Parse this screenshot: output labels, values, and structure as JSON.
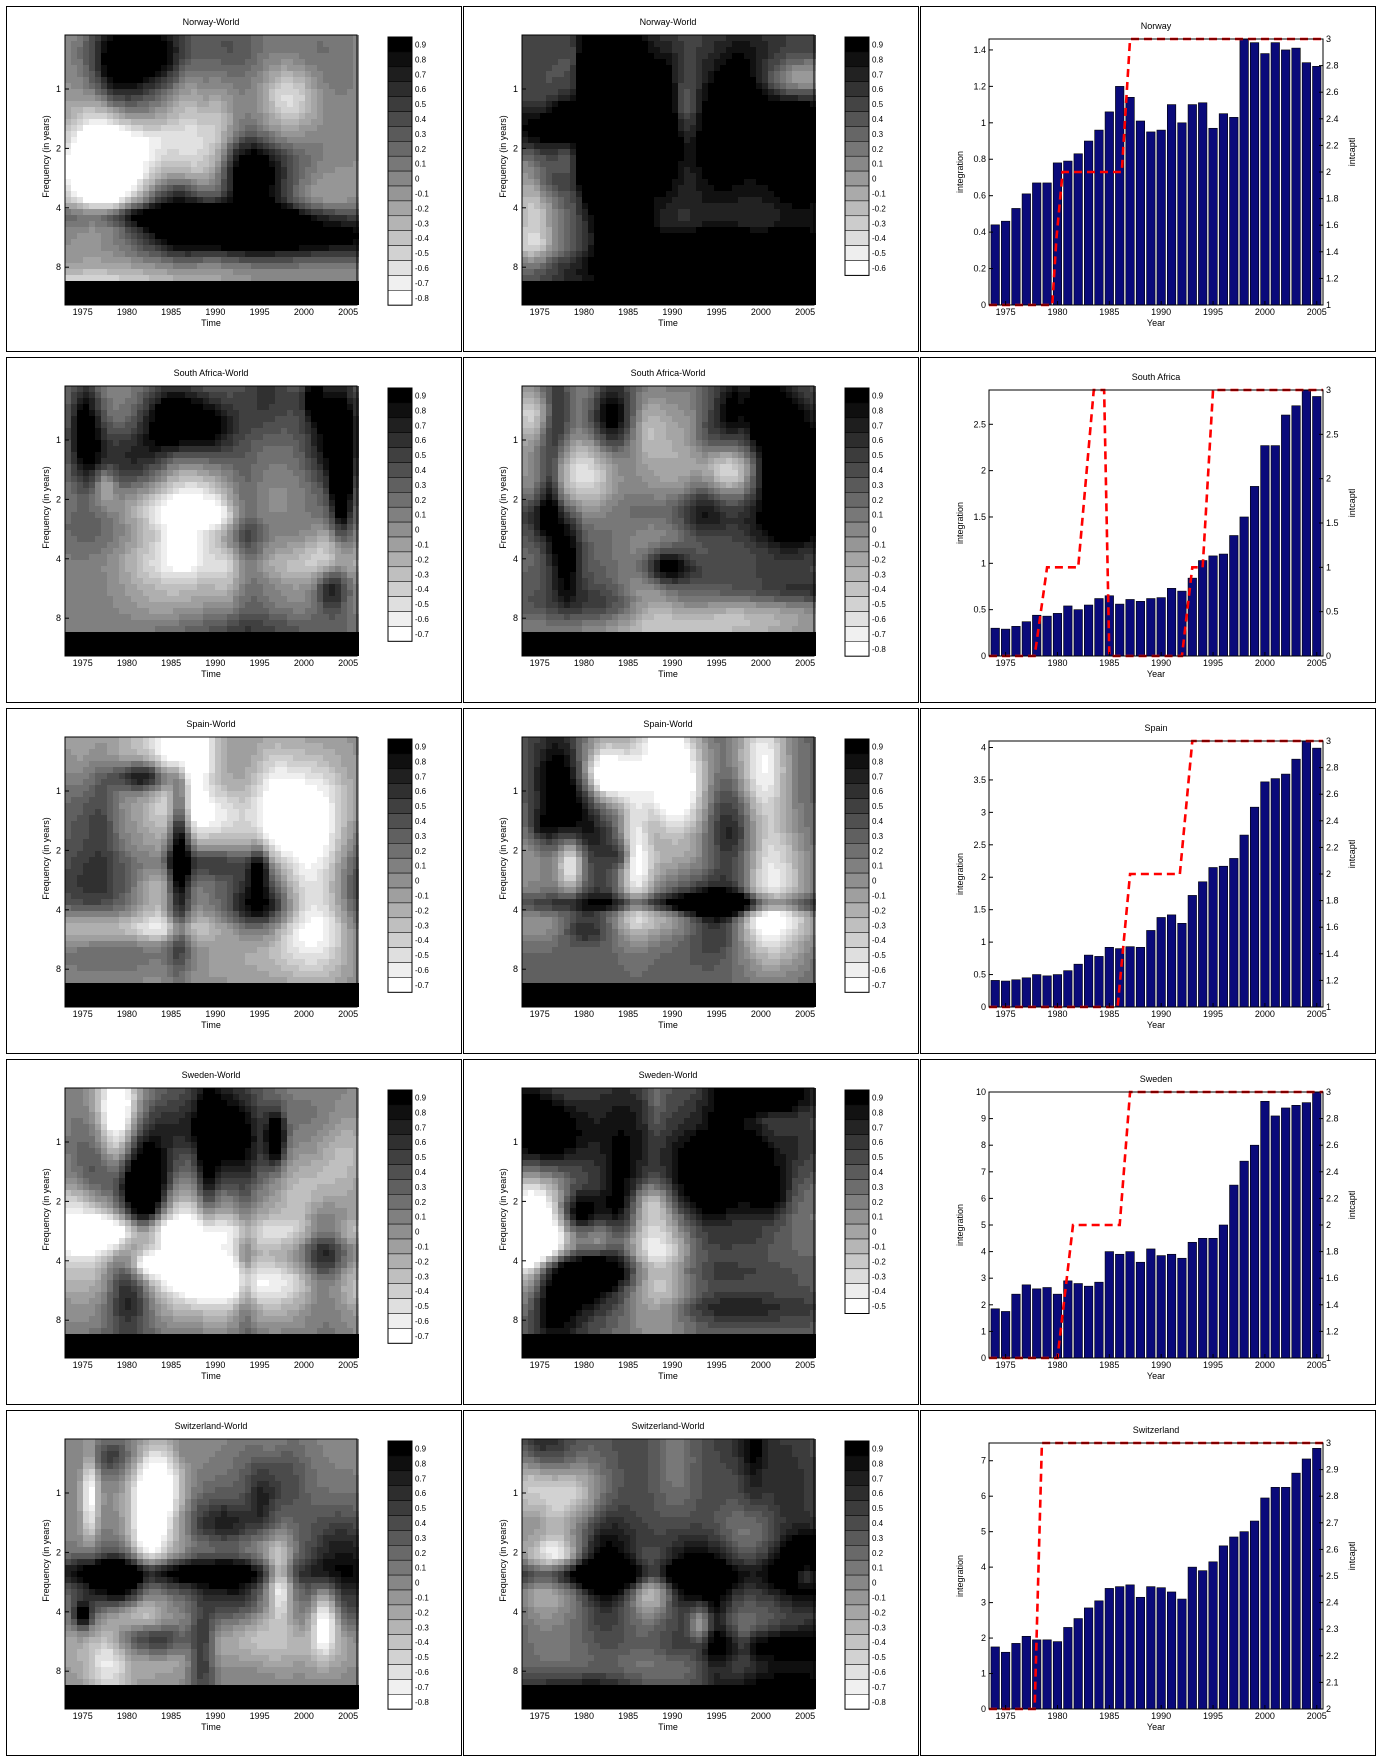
{
  "colors": {
    "bar_fill": "#0a0a7a",
    "dashed_line": "#ff0000",
    "contour_black": "#000000",
    "contour_white": "#ffffff"
  },
  "chart_data": [
    {
      "type": "heatmap",
      "title": "Norway-World",
      "xlabel": "Time",
      "ylabel": "Frequency (in years)",
      "xticks": [
        "1975",
        "1980",
        "1985",
        "1990",
        "1995",
        "2000",
        "2005"
      ],
      "yticks": [
        "1",
        "2",
        "4",
        "8"
      ],
      "colorbar_ticks": [
        "0.9",
        "0.8",
        "0.7",
        "0.6",
        "0.5",
        "0.4",
        "0.3",
        "0.2",
        "0.1",
        "0",
        "-0.1",
        "-0.2",
        "-0.3",
        "-0.4",
        "-0.5",
        "-0.6",
        "-0.7",
        "-0.8"
      ],
      "colorbar_range": [
        -0.8,
        0.9
      ],
      "seed": 11,
      "bias": -0.05
    },
    {
      "type": "heatmap",
      "title": "Norway-World",
      "xlabel": "Time",
      "ylabel": "Frequency (in years)",
      "xticks": [
        "1975",
        "1980",
        "1985",
        "1990",
        "1995",
        "2000",
        "2005"
      ],
      "yticks": [
        "1",
        "2",
        "4",
        "8"
      ],
      "colorbar_ticks": [
        "0.9",
        "0.8",
        "0.7",
        "0.6",
        "0.5",
        "0.4",
        "0.3",
        "0.2",
        "0.1",
        "0",
        "-0.1",
        "-0.2",
        "-0.3",
        "-0.4",
        "-0.5",
        "-0.6"
      ],
      "colorbar_range": [
        -0.6,
        0.9
      ],
      "seed": 12,
      "bias": 0.45
    },
    {
      "type": "bar",
      "title": "Norway",
      "xlabel": "Year",
      "ylabel": "integration",
      "y2label": "intcaptl",
      "x": [
        1974,
        1975,
        1976,
        1977,
        1978,
        1979,
        1980,
        1981,
        1982,
        1983,
        1984,
        1985,
        1986,
        1987,
        1988,
        1989,
        1990,
        1991,
        1992,
        1993,
        1994,
        1995,
        1996,
        1997,
        1998,
        1999,
        2000,
        2001,
        2002,
        2003,
        2004,
        2005
      ],
      "values": [
        0.44,
        0.46,
        0.53,
        0.61,
        0.67,
        0.67,
        0.78,
        0.79,
        0.83,
        0.9,
        0.96,
        1.06,
        1.2,
        1.14,
        1.01,
        0.95,
        0.96,
        1.1,
        1.0,
        1.1,
        1.11,
        0.97,
        1.05,
        1.03,
        1.46,
        1.44,
        1.38,
        1.44,
        1.4,
        1.41,
        1.33,
        1.31
      ],
      "line_x": [
        1973,
        1979.5,
        1979.9,
        1980.5,
        1986.2,
        1987,
        2006
      ],
      "line_y": [
        1,
        1,
        1.5,
        2,
        2,
        3,
        3
      ],
      "xticks": [
        "1975",
        "1980",
        "1985",
        "1990",
        "1995",
        "2000",
        "2005"
      ],
      "yticks": [
        "0",
        "0.2",
        "0.4",
        "0.6",
        "0.8",
        "1",
        "1.2",
        "1.4"
      ],
      "y2ticks": [
        "1",
        "1.2",
        "1.4",
        "1.6",
        "1.8",
        "2",
        "2.2",
        "2.4",
        "2.6",
        "2.8",
        "3"
      ],
      "ylim": [
        0,
        1.46
      ],
      "y2lim": [
        1,
        3
      ]
    },
    {
      "type": "heatmap",
      "title": "South Africa-World",
      "xlabel": "Time",
      "ylabel": "Frequency (in years)",
      "xticks": [
        "1975",
        "1980",
        "1985",
        "1990",
        "1995",
        "2000",
        "2005"
      ],
      "yticks": [
        "1",
        "2",
        "4",
        "8"
      ],
      "colorbar_ticks": [
        "0.9",
        "0.8",
        "0.7",
        "0.6",
        "0.5",
        "0.4",
        "0.3",
        "0.2",
        "0.1",
        "0",
        "-0.1",
        "-0.2",
        "-0.3",
        "-0.4",
        "-0.5",
        "-0.6",
        "-0.7"
      ],
      "colorbar_range": [
        -0.7,
        0.9
      ],
      "seed": 21,
      "bias": 0.05
    },
    {
      "type": "heatmap",
      "title": "South Africa-World",
      "xlabel": "Time",
      "ylabel": "Frequency (in years)",
      "xticks": [
        "1975",
        "1980",
        "1985",
        "1990",
        "1995",
        "2000",
        "2005"
      ],
      "yticks": [
        "1",
        "2",
        "4",
        "8"
      ],
      "colorbar_ticks": [
        "0.9",
        "0.8",
        "0.7",
        "0.6",
        "0.5",
        "0.4",
        "0.3",
        "0.2",
        "0.1",
        "0",
        "-0.1",
        "-0.2",
        "-0.3",
        "-0.4",
        "-0.5",
        "-0.6",
        "-0.7",
        "-0.8"
      ],
      "colorbar_range": [
        -0.8,
        0.9
      ],
      "seed": 22,
      "bias": 0.25
    },
    {
      "type": "bar",
      "title": "South Africa",
      "xlabel": "Year",
      "ylabel": "integration",
      "y2label": "intcaptl",
      "x": [
        1974,
        1975,
        1976,
        1977,
        1978,
        1979,
        1980,
        1981,
        1982,
        1983,
        1984,
        1985,
        1986,
        1987,
        1988,
        1989,
        1990,
        1991,
        1992,
        1993,
        1994,
        1995,
        1996,
        1997,
        1998,
        1999,
        2000,
        2001,
        2002,
        2003,
        2004,
        2005
      ],
      "values": [
        0.3,
        0.29,
        0.32,
        0.37,
        0.44,
        0.43,
        0.46,
        0.54,
        0.5,
        0.55,
        0.62,
        0.65,
        0.56,
        0.61,
        0.59,
        0.62,
        0.63,
        0.73,
        0.7,
        0.84,
        1.03,
        1.08,
        1.1,
        1.3,
        1.5,
        1.83,
        2.27,
        2.27,
        2.6,
        2.7,
        2.87,
        2.8
      ],
      "line_x": [
        1973,
        1977.8,
        1979,
        1981,
        1982,
        1983.5,
        1984.5,
        1985,
        1992,
        1993,
        1994,
        1995,
        2006
      ],
      "line_y": [
        0,
        0,
        1,
        1,
        1,
        3,
        3,
        0,
        0,
        1,
        1,
        3,
        3
      ],
      "xticks": [
        "1975",
        "1980",
        "1985",
        "1990",
        "1995",
        "2000",
        "2005"
      ],
      "yticks": [
        "0",
        "0.5",
        "1",
        "1.5",
        "2",
        "2.5"
      ],
      "y2ticks": [
        "0",
        "0.5",
        "1",
        "1.5",
        "2",
        "2.5",
        "3"
      ],
      "ylim": [
        0,
        2.87
      ],
      "y2lim": [
        0,
        3
      ]
    },
    {
      "type": "heatmap",
      "title": "Spain-World",
      "xlabel": "Time",
      "ylabel": "Frequency (in years)",
      "xticks": [
        "1975",
        "1980",
        "1985",
        "1990",
        "1995",
        "2000",
        "2005"
      ],
      "yticks": [
        "1",
        "2",
        "4",
        "8"
      ],
      "colorbar_ticks": [
        "0.9",
        "0.8",
        "0.7",
        "0.6",
        "0.5",
        "0.4",
        "0.3",
        "0.2",
        "0.1",
        "0",
        "-0.1",
        "-0.2",
        "-0.3",
        "-0.4",
        "-0.5",
        "-0.6",
        "-0.7"
      ],
      "colorbar_range": [
        -0.7,
        0.9
      ],
      "seed": 31,
      "bias": 0.0
    },
    {
      "type": "heatmap",
      "title": "Spain-World",
      "xlabel": "Time",
      "ylabel": "Frequency (in years)",
      "xticks": [
        "1975",
        "1980",
        "1985",
        "1990",
        "1995",
        "2000",
        "2005"
      ],
      "yticks": [
        "1",
        "2",
        "4",
        "8"
      ],
      "colorbar_ticks": [
        "0.9",
        "0.8",
        "0.7",
        "0.6",
        "0.5",
        "0.4",
        "0.3",
        "0.2",
        "0.1",
        "0",
        "-0.1",
        "-0.2",
        "-0.3",
        "-0.4",
        "-0.5",
        "-0.6",
        "-0.7"
      ],
      "colorbar_range": [
        -0.7,
        0.9
      ],
      "seed": 32,
      "bias": 0.3
    },
    {
      "type": "bar",
      "title": "Spain",
      "xlabel": "Year",
      "ylabel": "integration",
      "y2label": "intcaptl",
      "x": [
        1974,
        1975,
        1976,
        1977,
        1978,
        1979,
        1980,
        1981,
        1982,
        1983,
        1984,
        1985,
        1986,
        1987,
        1988,
        1989,
        1990,
        1991,
        1992,
        1993,
        1994,
        1995,
        1996,
        1997,
        1998,
        1999,
        2000,
        2001,
        2002,
        2003,
        2004,
        2005
      ],
      "values": [
        0.41,
        0.4,
        0.42,
        0.45,
        0.5,
        0.48,
        0.5,
        0.56,
        0.66,
        0.8,
        0.78,
        0.92,
        0.9,
        0.93,
        0.92,
        1.18,
        1.38,
        1.42,
        1.29,
        1.72,
        1.93,
        2.15,
        2.17,
        2.29,
        2.65,
        3.08,
        3.47,
        3.52,
        3.59,
        3.82,
        4.1,
        3.99
      ],
      "line_x": [
        1973,
        1985.8,
        1987,
        1991.8,
        1993,
        2006
      ],
      "line_y": [
        1,
        1,
        2,
        2,
        3,
        3
      ],
      "xticks": [
        "1975",
        "1980",
        "1985",
        "1990",
        "1995",
        "2000",
        "2005"
      ],
      "yticks": [
        "0",
        "0.5",
        "1",
        "1.5",
        "2",
        "2.5",
        "3",
        "3.5",
        "4"
      ],
      "y2ticks": [
        "1",
        "1.2",
        "1.4",
        "1.6",
        "1.8",
        "2",
        "2.2",
        "2.4",
        "2.6",
        "2.8",
        "3"
      ],
      "ylim": [
        0,
        4.1
      ],
      "y2lim": [
        1,
        3
      ]
    },
    {
      "type": "heatmap",
      "title": "Sweden-World",
      "xlabel": "Time",
      "ylabel": "Frequency (in years)",
      "xticks": [
        "1975",
        "1980",
        "1985",
        "1990",
        "1995",
        "2000",
        "2005"
      ],
      "yticks": [
        "1",
        "2",
        "4",
        "8"
      ],
      "colorbar_ticks": [
        "0.9",
        "0.8",
        "0.7",
        "0.6",
        "0.5",
        "0.4",
        "0.3",
        "0.2",
        "0.1",
        "0",
        "-0.1",
        "-0.2",
        "-0.3",
        "-0.4",
        "-0.5",
        "-0.6",
        "-0.7"
      ],
      "colorbar_range": [
        -0.7,
        0.9
      ],
      "seed": 41,
      "bias": 0.05
    },
    {
      "type": "heatmap",
      "title": "Sweden-World",
      "xlabel": "Time",
      "ylabel": "Frequency (in years)",
      "xticks": [
        "1975",
        "1980",
        "1985",
        "1990",
        "1995",
        "2000",
        "2005"
      ],
      "yticks": [
        "1",
        "2",
        "4",
        "8"
      ],
      "colorbar_ticks": [
        "0.9",
        "0.8",
        "0.7",
        "0.6",
        "0.5",
        "0.4",
        "0.3",
        "0.2",
        "0.1",
        "0",
        "-0.1",
        "-0.2",
        "-0.3",
        "-0.4",
        "-0.5"
      ],
      "colorbar_range": [
        -0.5,
        0.9
      ],
      "seed": 42,
      "bias": 0.4
    },
    {
      "type": "bar",
      "title": "Sweden",
      "xlabel": "Year",
      "ylabel": "integration",
      "y2label": "intcaptl",
      "x": [
        1974,
        1975,
        1976,
        1977,
        1978,
        1979,
        1980,
        1981,
        1982,
        1983,
        1984,
        1985,
        1986,
        1987,
        1988,
        1989,
        1990,
        1991,
        1992,
        1993,
        1994,
        1995,
        1996,
        1997,
        1998,
        1999,
        2000,
        2001,
        2002,
        2003,
        2004,
        2005
      ],
      "values": [
        1.85,
        1.75,
        2.4,
        2.75,
        2.6,
        2.65,
        2.4,
        2.9,
        2.8,
        2.7,
        2.85,
        4.0,
        3.9,
        4.0,
        3.6,
        4.1,
        3.85,
        3.9,
        3.75,
        4.35,
        4.5,
        4.5,
        5.0,
        6.5,
        7.4,
        8.0,
        9.65,
        9.1,
        9.4,
        9.5,
        9.6,
        10.0
      ],
      "line_x": [
        1973,
        1980,
        1981.5,
        1986,
        1987,
        2006
      ],
      "line_y": [
        1,
        1,
        2,
        2,
        3,
        3
      ],
      "xticks": [
        "1975",
        "1980",
        "1985",
        "1990",
        "1995",
        "2000",
        "2005"
      ],
      "yticks": [
        "0",
        "1",
        "2",
        "3",
        "4",
        "5",
        "6",
        "7",
        "8",
        "9",
        "10"
      ],
      "y2ticks": [
        "1",
        "1.2",
        "1.4",
        "1.6",
        "1.8",
        "2",
        "2.2",
        "2.4",
        "2.6",
        "2.8",
        "3"
      ],
      "ylim": [
        0,
        10
      ],
      "y2lim": [
        1,
        3
      ]
    },
    {
      "type": "heatmap",
      "title": "Switzerland-World",
      "xlabel": "Time",
      "ylabel": "Frequency (in years)",
      "xticks": [
        "1975",
        "1980",
        "1985",
        "1990",
        "1995",
        "2000",
        "2005"
      ],
      "yticks": [
        "1",
        "2",
        "4",
        "8"
      ],
      "colorbar_ticks": [
        "0.9",
        "0.8",
        "0.7",
        "0.6",
        "0.5",
        "0.4",
        "0.3",
        "0.2",
        "0.1",
        "0",
        "-0.1",
        "-0.2",
        "-0.3",
        "-0.4",
        "-0.5",
        "-0.6",
        "-0.7",
        "-0.8"
      ],
      "colorbar_range": [
        -0.8,
        0.9
      ],
      "seed": 51,
      "bias": 0.0
    },
    {
      "type": "heatmap",
      "title": "Switzerland-World",
      "xlabel": "Time",
      "ylabel": "Frequency (in years)",
      "xticks": [
        "1975",
        "1980",
        "1985",
        "1990",
        "1995",
        "2000",
        "2005"
      ],
      "yticks": [
        "1",
        "2",
        "4",
        "8"
      ],
      "colorbar_ticks": [
        "0.9",
        "0.8",
        "0.7",
        "0.6",
        "0.5",
        "0.4",
        "0.3",
        "0.2",
        "0.1",
        "0",
        "-0.1",
        "-0.2",
        "-0.3",
        "-0.4",
        "-0.5",
        "-0.6",
        "-0.7",
        "-0.8"
      ],
      "colorbar_range": [
        -0.8,
        0.9
      ],
      "seed": 52,
      "bias": 0.4
    },
    {
      "type": "bar",
      "title": "Switzerland",
      "xlabel": "Year",
      "ylabel": "integration",
      "y2label": "intcaptl",
      "x": [
        1974,
        1975,
        1976,
        1977,
        1978,
        1979,
        1980,
        1981,
        1982,
        1983,
        1984,
        1985,
        1986,
        1987,
        1988,
        1989,
        1990,
        1991,
        1992,
        1993,
        1994,
        1995,
        1996,
        1997,
        1998,
        1999,
        2000,
        2001,
        2002,
        2003,
        2004,
        2005
      ],
      "values": [
        1.75,
        1.6,
        1.85,
        2.05,
        1.95,
        1.95,
        1.9,
        2.3,
        2.55,
        2.85,
        3.05,
        3.4,
        3.45,
        3.5,
        3.15,
        3.45,
        3.42,
        3.3,
        3.1,
        4.0,
        3.9,
        4.15,
        4.6,
        4.85,
        5.0,
        5.3,
        5.95,
        6.25,
        6.25,
        6.65,
        7.05,
        7.35
      ],
      "line_x": [
        1973,
        1977.8,
        1978.5,
        2006
      ],
      "line_y": [
        2,
        2,
        3,
        3
      ],
      "xticks": [
        "1975",
        "1980",
        "1985",
        "1990",
        "1995",
        "2000",
        "2005"
      ],
      "yticks": [
        "0",
        "1",
        "2",
        "3",
        "4",
        "5",
        "6",
        "7"
      ],
      "y2ticks": [
        "2",
        "2.1",
        "2.2",
        "2.3",
        "2.4",
        "2.5",
        "2.6",
        "2.7",
        "2.8",
        "2.9",
        "3"
      ],
      "ylim": [
        0,
        7.5
      ],
      "y2lim": [
        2,
        3
      ]
    }
  ]
}
